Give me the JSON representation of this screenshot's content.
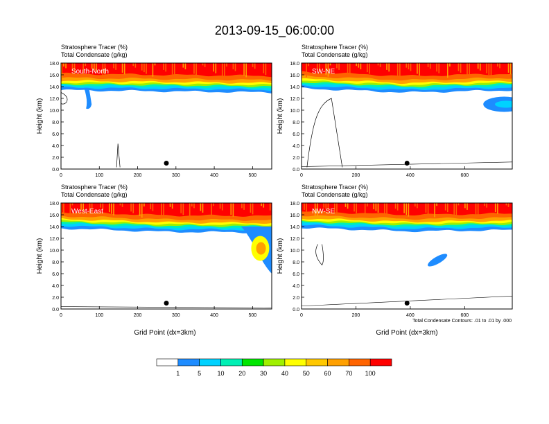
{
  "figure_title": "2013-09-15_06:00:00",
  "panel_title_line1": "Stratosphere Tracer   (%)",
  "panel_title_line2": "Total Condensate   (g/kg)",
  "xlabel": "Grid Point (dx=3km)",
  "ylabel": "Height (km)",
  "contour_note": "Total Condensate Contours: .01 to .01 by .000",
  "colorbar": {
    "labels": [
      "1",
      "5",
      "10",
      "20",
      "30",
      "40",
      "50",
      "60",
      "70",
      "100"
    ],
    "colors": [
      "#ffffff",
      "#1e8cff",
      "#00d2ff",
      "#00f0b4",
      "#00e600",
      "#a0f000",
      "#ffff00",
      "#ffc800",
      "#ffa000",
      "#ff6400",
      "#ff0000"
    ]
  },
  "chart_data": [
    {
      "type": "heatmap",
      "name": "South-North",
      "x_max": 550,
      "xticks": [
        0,
        100,
        200,
        300,
        400,
        500
      ],
      "ylim": [
        0,
        18
      ],
      "yticks": [
        "0.0",
        "2.0",
        "4.0",
        "6.0",
        "8.0",
        "10.0",
        "12.0",
        "14.0",
        "16.0",
        "18.0"
      ],
      "tropopause_km": [
        14.2,
        14.0,
        13.8
      ],
      "center_point": 275
    },
    {
      "type": "heatmap",
      "name": "SW-NE",
      "x_max": 775,
      "xticks": [
        0,
        200,
        400,
        600
      ],
      "ylim": [
        0,
        18
      ],
      "yticks": [
        "0.0",
        "2.0",
        "4.0",
        "6.0",
        "8.0",
        "10.0",
        "12.0",
        "14.0",
        "16.0",
        "18.0"
      ],
      "tropopause_km": [
        14.5,
        13.8,
        14.2
      ],
      "center_point": 388
    },
    {
      "type": "heatmap",
      "name": "West-East",
      "x_max": 550,
      "xticks": [
        0,
        100,
        200,
        300,
        400,
        500
      ],
      "ylim": [
        0,
        18
      ],
      "yticks": [
        "0.0",
        "2.0",
        "4.0",
        "6.0",
        "8.0",
        "10.0",
        "12.0",
        "14.0",
        "16.0",
        "18.0"
      ],
      "tropopause_km": [
        14.5,
        13.9,
        13.8
      ],
      "center_point": 275
    },
    {
      "type": "heatmap",
      "name": "NW-SE",
      "x_max": 775,
      "xticks": [
        0,
        200,
        400,
        600
      ],
      "ylim": [
        0,
        18
      ],
      "yticks": [
        "0.0",
        "2.0",
        "4.0",
        "6.0",
        "8.0",
        "10.0",
        "12.0",
        "14.0",
        "16.0",
        "18.0"
      ],
      "tropopause_km": [
        14.6,
        14.0,
        14.2
      ],
      "center_point": 388
    }
  ]
}
